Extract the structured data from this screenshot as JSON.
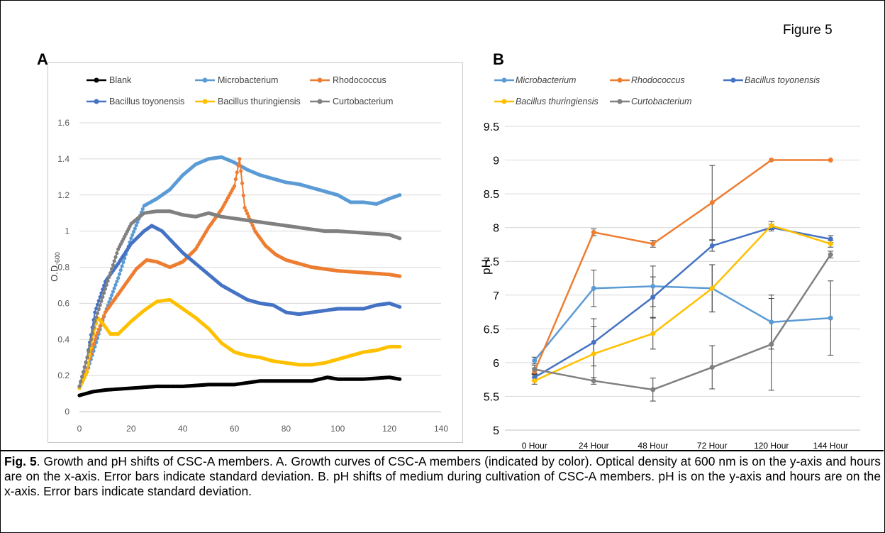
{
  "figure_label": "Figure 5",
  "panel_a_letter": "A",
  "panel_b_letter": "B",
  "caption_bold": "Fig. 5",
  "caption_text": ". Growth and pH shifts of CSC-A members. A. Growth curves of CSC-A members (indicated by color).  Optical density at 600 nm is on the y-axis and hours are on the x-axis. Error bars indicate standard deviation. B. pH shifts of medium during cultivation of CSC-A members. pH is on the y-axis and hours are on the x-axis. Error bars indicate standard deviation.",
  "chart_data": [
    {
      "type": "line",
      "title": "",
      "xlabel": "",
      "ylabel": "O.D.600",
      "ylabel_main": "O.D.",
      "ylabel_sub": "600",
      "xlim": [
        0,
        140
      ],
      "ylim": [
        0,
        1.6
      ],
      "xticks": [
        "0",
        "20",
        "40",
        "60",
        "80",
        "100",
        "120",
        "140"
      ],
      "yticks": [
        "0",
        "0.2",
        "0.4",
        "0.6",
        "0.8",
        "1",
        "1.2",
        "1.4",
        "1.6"
      ],
      "grid": "horizontal",
      "legend_position": "top",
      "series": [
        {
          "name": "Blank",
          "color": "#000000",
          "points": [
            [
              0,
              0.09
            ],
            [
              5,
              0.11
            ],
            [
              10,
              0.12
            ],
            [
              20,
              0.13
            ],
            [
              30,
              0.14
            ],
            [
              40,
              0.14
            ],
            [
              50,
              0.15
            ],
            [
              60,
              0.15
            ],
            [
              70,
              0.17
            ],
            [
              80,
              0.17
            ],
            [
              90,
              0.17
            ],
            [
              96,
              0.19
            ],
            [
              100,
              0.18
            ],
            [
              110,
              0.18
            ],
            [
              120,
              0.19
            ],
            [
              124,
              0.18
            ]
          ]
        },
        {
          "name": "Microbacterium",
          "color": "#5b9bd5",
          "points": [
            [
              0,
              0.13
            ],
            [
              3,
              0.22
            ],
            [
              6,
              0.36
            ],
            [
              10,
              0.55
            ],
            [
              15,
              0.74
            ],
            [
              20,
              0.96
            ],
            [
              25,
              1.14
            ],
            [
              30,
              1.18
            ],
            [
              35,
              1.23
            ],
            [
              40,
              1.31
            ],
            [
              45,
              1.37
            ],
            [
              50,
              1.4
            ],
            [
              55,
              1.41
            ],
            [
              60,
              1.38
            ],
            [
              65,
              1.34
            ],
            [
              70,
              1.31
            ],
            [
              75,
              1.29
            ],
            [
              80,
              1.27
            ],
            [
              85,
              1.26
            ],
            [
              90,
              1.24
            ],
            [
              95,
              1.22
            ],
            [
              100,
              1.2
            ],
            [
              105,
              1.16
            ],
            [
              110,
              1.16
            ],
            [
              115,
              1.15
            ],
            [
              120,
              1.18
            ],
            [
              124,
              1.2
            ]
          ]
        },
        {
          "name": "Rhodococcus",
          "color": "#ed7d31",
          "points": [
            [
              0,
              0.14
            ],
            [
              3,
              0.24
            ],
            [
              6,
              0.4
            ],
            [
              10,
              0.55
            ],
            [
              14,
              0.63
            ],
            [
              18,
              0.71
            ],
            [
              22,
              0.79
            ],
            [
              26,
              0.84
            ],
            [
              30,
              0.83
            ],
            [
              35,
              0.8
            ],
            [
              40,
              0.83
            ],
            [
              45,
              0.9
            ],
            [
              50,
              1.02
            ],
            [
              55,
              1.12
            ],
            [
              60,
              1.25
            ],
            [
              62,
              1.4
            ],
            [
              64,
              1.13
            ],
            [
              68,
              1.0
            ],
            [
              72,
              0.92
            ],
            [
              76,
              0.87
            ],
            [
              80,
              0.84
            ],
            [
              85,
              0.82
            ],
            [
              90,
              0.8
            ],
            [
              95,
              0.79
            ],
            [
              100,
              0.78
            ],
            [
              110,
              0.77
            ],
            [
              120,
              0.76
            ],
            [
              124,
              0.75
            ]
          ]
        },
        {
          "name": "Bacillus toyonensis",
          "color": "#4472c4",
          "points": [
            [
              0,
              0.14
            ],
            [
              3,
              0.3
            ],
            [
              6,
              0.55
            ],
            [
              10,
              0.72
            ],
            [
              15,
              0.82
            ],
            [
              20,
              0.93
            ],
            [
              25,
              1.0
            ],
            [
              28,
              1.03
            ],
            [
              32,
              1.0
            ],
            [
              40,
              0.88
            ],
            [
              45,
              0.82
            ],
            [
              50,
              0.76
            ],
            [
              55,
              0.7
            ],
            [
              60,
              0.66
            ],
            [
              65,
              0.62
            ],
            [
              70,
              0.6
            ],
            [
              75,
              0.59
            ],
            [
              80,
              0.55
            ],
            [
              85,
              0.54
            ],
            [
              90,
              0.55
            ],
            [
              95,
              0.56
            ],
            [
              100,
              0.57
            ],
            [
              110,
              0.57
            ],
            [
              115,
              0.59
            ],
            [
              120,
              0.6
            ],
            [
              124,
              0.58
            ]
          ]
        },
        {
          "name": "Bacillus thuringiensis",
          "color": "#ffc000",
          "points": [
            [
              0,
              0.13
            ],
            [
              3,
              0.22
            ],
            [
              5,
              0.4
            ],
            [
              7,
              0.52
            ],
            [
              9,
              0.49
            ],
            [
              12,
              0.43
            ],
            [
              15,
              0.43
            ],
            [
              20,
              0.5
            ],
            [
              25,
              0.56
            ],
            [
              30,
              0.61
            ],
            [
              35,
              0.62
            ],
            [
              40,
              0.57
            ],
            [
              45,
              0.52
            ],
            [
              50,
              0.46
            ],
            [
              55,
              0.38
            ],
            [
              60,
              0.33
            ],
            [
              65,
              0.31
            ],
            [
              70,
              0.3
            ],
            [
              75,
              0.28
            ],
            [
              80,
              0.27
            ],
            [
              85,
              0.26
            ],
            [
              90,
              0.26
            ],
            [
              95,
              0.27
            ],
            [
              100,
              0.29
            ],
            [
              105,
              0.31
            ],
            [
              110,
              0.33
            ],
            [
              115,
              0.34
            ],
            [
              120,
              0.36
            ],
            [
              124,
              0.36
            ]
          ]
        },
        {
          "name": "Curtobacterium",
          "color": "#808080",
          "points": [
            [
              0,
              0.14
            ],
            [
              3,
              0.3
            ],
            [
              6,
              0.5
            ],
            [
              10,
              0.68
            ],
            [
              15,
              0.9
            ],
            [
              20,
              1.04
            ],
            [
              25,
              1.1
            ],
            [
              30,
              1.11
            ],
            [
              35,
              1.11
            ],
            [
              40,
              1.09
            ],
            [
              45,
              1.08
            ],
            [
              50,
              1.1
            ],
            [
              55,
              1.08
            ],
            [
              60,
              1.07
            ],
            [
              65,
              1.06
            ],
            [
              70,
              1.05
            ],
            [
              75,
              1.04
            ],
            [
              80,
              1.03
            ],
            [
              85,
              1.02
            ],
            [
              90,
              1.01
            ],
            [
              95,
              1.0
            ],
            [
              100,
              1.0
            ],
            [
              110,
              0.99
            ],
            [
              120,
              0.98
            ],
            [
              124,
              0.96
            ]
          ]
        }
      ]
    },
    {
      "type": "line",
      "title": "",
      "xlabel": "",
      "ylabel": "pH",
      "categories": [
        "0 Hour",
        "24 Hour",
        "48 Hour",
        "72 Hour",
        "120 Hour",
        "144 Hour"
      ],
      "ylim": [
        5,
        9.5
      ],
      "yticks": [
        "5",
        "5.5",
        "6",
        "6.5",
        "7",
        "7.5",
        "8",
        "8.5",
        "9",
        "9.5"
      ],
      "grid": "horizontal",
      "legend_position": "top",
      "legend_italic": true,
      "series": [
        {
          "name": "Microbacterium",
          "color": "#5b9bd5",
          "values": [
            6.03,
            7.1,
            7.13,
            7.1,
            6.6,
            6.66
          ],
          "errors": [
            0.05,
            0.27,
            0.3,
            0.35,
            0.4,
            0.55
          ]
        },
        {
          "name": "Rhodococcus",
          "color": "#ed7d31",
          "values": [
            5.87,
            7.93,
            7.76,
            8.37,
            9.0,
            9.0
          ],
          "errors": [
            0.05,
            0.05,
            0.05,
            0.55,
            0.0,
            0.0
          ]
        },
        {
          "name": "Bacillus toyonensis",
          "color": "#4472c4",
          "values": [
            5.78,
            6.3,
            6.97,
            7.73,
            8.0,
            7.83
          ],
          "errors": [
            0.05,
            0.35,
            0.3,
            0.08,
            0.05,
            0.05
          ]
        },
        {
          "name": "Bacillus thuringiensis",
          "color": "#ffc000",
          "values": [
            5.73,
            6.13,
            6.43,
            7.1,
            8.03,
            7.76
          ],
          "errors": [
            0.05,
            0.4,
            0.23,
            0.35,
            0.06,
            0.05
          ]
        },
        {
          "name": "Curtobacterium",
          "color": "#808080",
          "values": [
            5.9,
            5.73,
            5.6,
            5.93,
            6.27,
            7.6
          ],
          "errors": [
            0.06,
            0.05,
            0.17,
            0.32,
            0.68,
            0.05
          ]
        }
      ]
    }
  ]
}
